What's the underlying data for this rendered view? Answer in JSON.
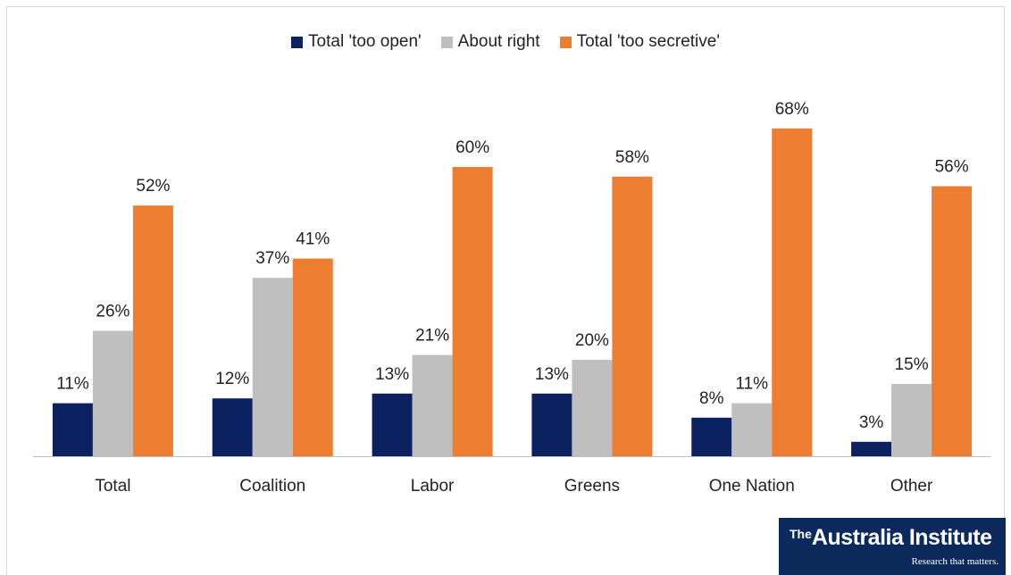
{
  "legend": [
    {
      "label": "Total 'too open'",
      "color": "#0b2160"
    },
    {
      "label": "About right",
      "color": "#bfbfbf"
    },
    {
      "label": "Total 'too secretive'",
      "color": "#ed7d31"
    }
  ],
  "chart_data": {
    "type": "bar",
    "categories": [
      "Total",
      "Coalition",
      "Labor",
      "Greens",
      "One Nation",
      "Other"
    ],
    "series": [
      {
        "name": "Total 'too open'",
        "values": [
          11,
          12,
          13,
          13,
          8,
          3
        ],
        "labels": [
          "11%",
          "12%",
          "13%",
          "13%",
          "8%",
          "3%"
        ],
        "color": "#0b2160"
      },
      {
        "name": "About right",
        "values": [
          26,
          37,
          21,
          20,
          11,
          15
        ],
        "labels": [
          "26%",
          "37%",
          "21%",
          "20%",
          "11%",
          "15%"
        ],
        "color": "#bfbfbf"
      },
      {
        "name": "Total 'too secretive'",
        "values": [
          52,
          41,
          60,
          58,
          68,
          56
        ],
        "labels": [
          "52%",
          "41%",
          "60%",
          "58%",
          "68%",
          "56%"
        ],
        "color": "#ed7d31"
      }
    ],
    "ylim": [
      0,
      80
    ],
    "grid": false,
    "legend_position": "top"
  },
  "logo": {
    "the": "The",
    "name": "Australia Institute",
    "tagline": "Research that matters."
  }
}
